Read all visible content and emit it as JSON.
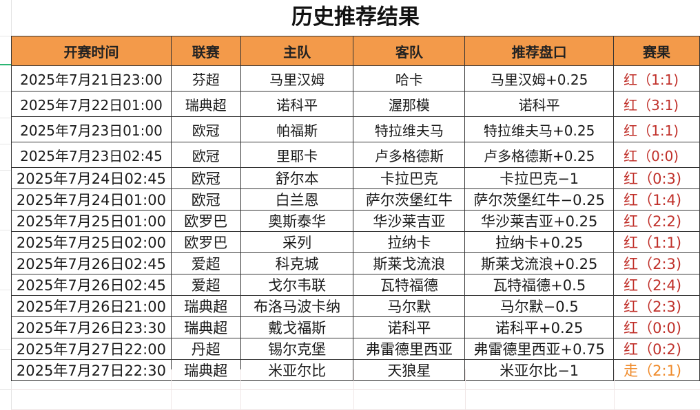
{
  "title": "历史推荐结果",
  "colors": {
    "header_bg": "#f39a4a",
    "win": "#c0302a",
    "push": "#ef8a2a"
  },
  "columns": [
    "开赛时间",
    "联赛",
    "主队",
    "客队",
    "推荐盘口",
    "赛果"
  ],
  "rows": [
    {
      "time": "2025年7月21日23:00",
      "league": "芬超",
      "home": "马里汉姆",
      "away": "哈卡",
      "pick": "马里汉姆+0.25",
      "result": "红（1:1)",
      "status": "win"
    },
    {
      "time": "2025年7月22日01:00",
      "league": "瑞典超",
      "home": "诺科平",
      "away": "渥那模",
      "pick": "诺科平",
      "result": "红（3:1)",
      "status": "win"
    },
    {
      "time": "2025年7月23日01:00",
      "league": "欧冠",
      "home": "帕福斯",
      "away": "特拉维夫马",
      "pick": "特拉维夫马+0.25",
      "result": "红（1:1)",
      "status": "win"
    },
    {
      "time": "2025年7月23日02:45",
      "league": "欧冠",
      "home": "里耶卡",
      "away": "卢多格德斯",
      "pick": "卢多格德斯+0.25",
      "result": "红（0:0)",
      "status": "win"
    },
    {
      "time": "2025年7月24日02:45",
      "league": "欧冠",
      "home": "舒尔本",
      "away": "卡拉巴克",
      "pick": "卡拉巴克−1",
      "result": "红（0:3)",
      "status": "win"
    },
    {
      "time": "2025年7月24日01:00",
      "league": "欧冠",
      "home": "白兰恩",
      "away": "萨尔茨堡红牛",
      "pick": "萨尔茨堡红牛−0.25",
      "result": "红（1:4)",
      "status": "win"
    },
    {
      "time": "2025年7月25日01:00",
      "league": "欧罗巴",
      "home": "奥斯泰华",
      "away": "华沙莱吉亚",
      "pick": "华沙莱吉亚+0.25",
      "result": "红（2:2)",
      "status": "win"
    },
    {
      "time": "2025年7月25日02:00",
      "league": "欧罗巴",
      "home": "采列",
      "away": "拉纳卡",
      "pick": "拉纳卡+0.25",
      "result": "红（1:1)",
      "status": "win"
    },
    {
      "time": "2025年7月26日02:45",
      "league": "爱超",
      "home": "科克城",
      "away": "斯莱戈流浪",
      "pick": "斯莱戈流浪+0.25",
      "result": "红（2:3)",
      "status": "win"
    },
    {
      "time": "2025年7月26日02:45",
      "league": "爱超",
      "home": "戈尔韦联",
      "away": "瓦特福德",
      "pick": "瓦特福德+0.5",
      "result": "红（2:4)",
      "status": "win"
    },
    {
      "time": "2025年7月26日21:00",
      "league": "瑞典超",
      "home": "布洛马波卡纳",
      "away": "马尔默",
      "pick": "马尔默−0.5",
      "result": "红（2:3)",
      "status": "win"
    },
    {
      "time": "2025年7月26日23:30",
      "league": "瑞典超",
      "home": "戴戈福斯",
      "away": "诺科平",
      "pick": "诺科平+0.25",
      "result": "红（0:0)",
      "status": "win"
    },
    {
      "time": "2025年7月27日22:00",
      "league": "丹超",
      "home": "锡尔克堡",
      "away": "弗雷德里西亚",
      "pick": "弗雷德里西亚+0.75",
      "result": "红（0:2)",
      "status": "win"
    },
    {
      "time": "2025年7月27日22:30",
      "league": "瑞典超",
      "home": "米亚尔比",
      "away": "天狼星",
      "pick": "米亚尔比−1",
      "result": "走（2:1)",
      "status": "push"
    }
  ]
}
